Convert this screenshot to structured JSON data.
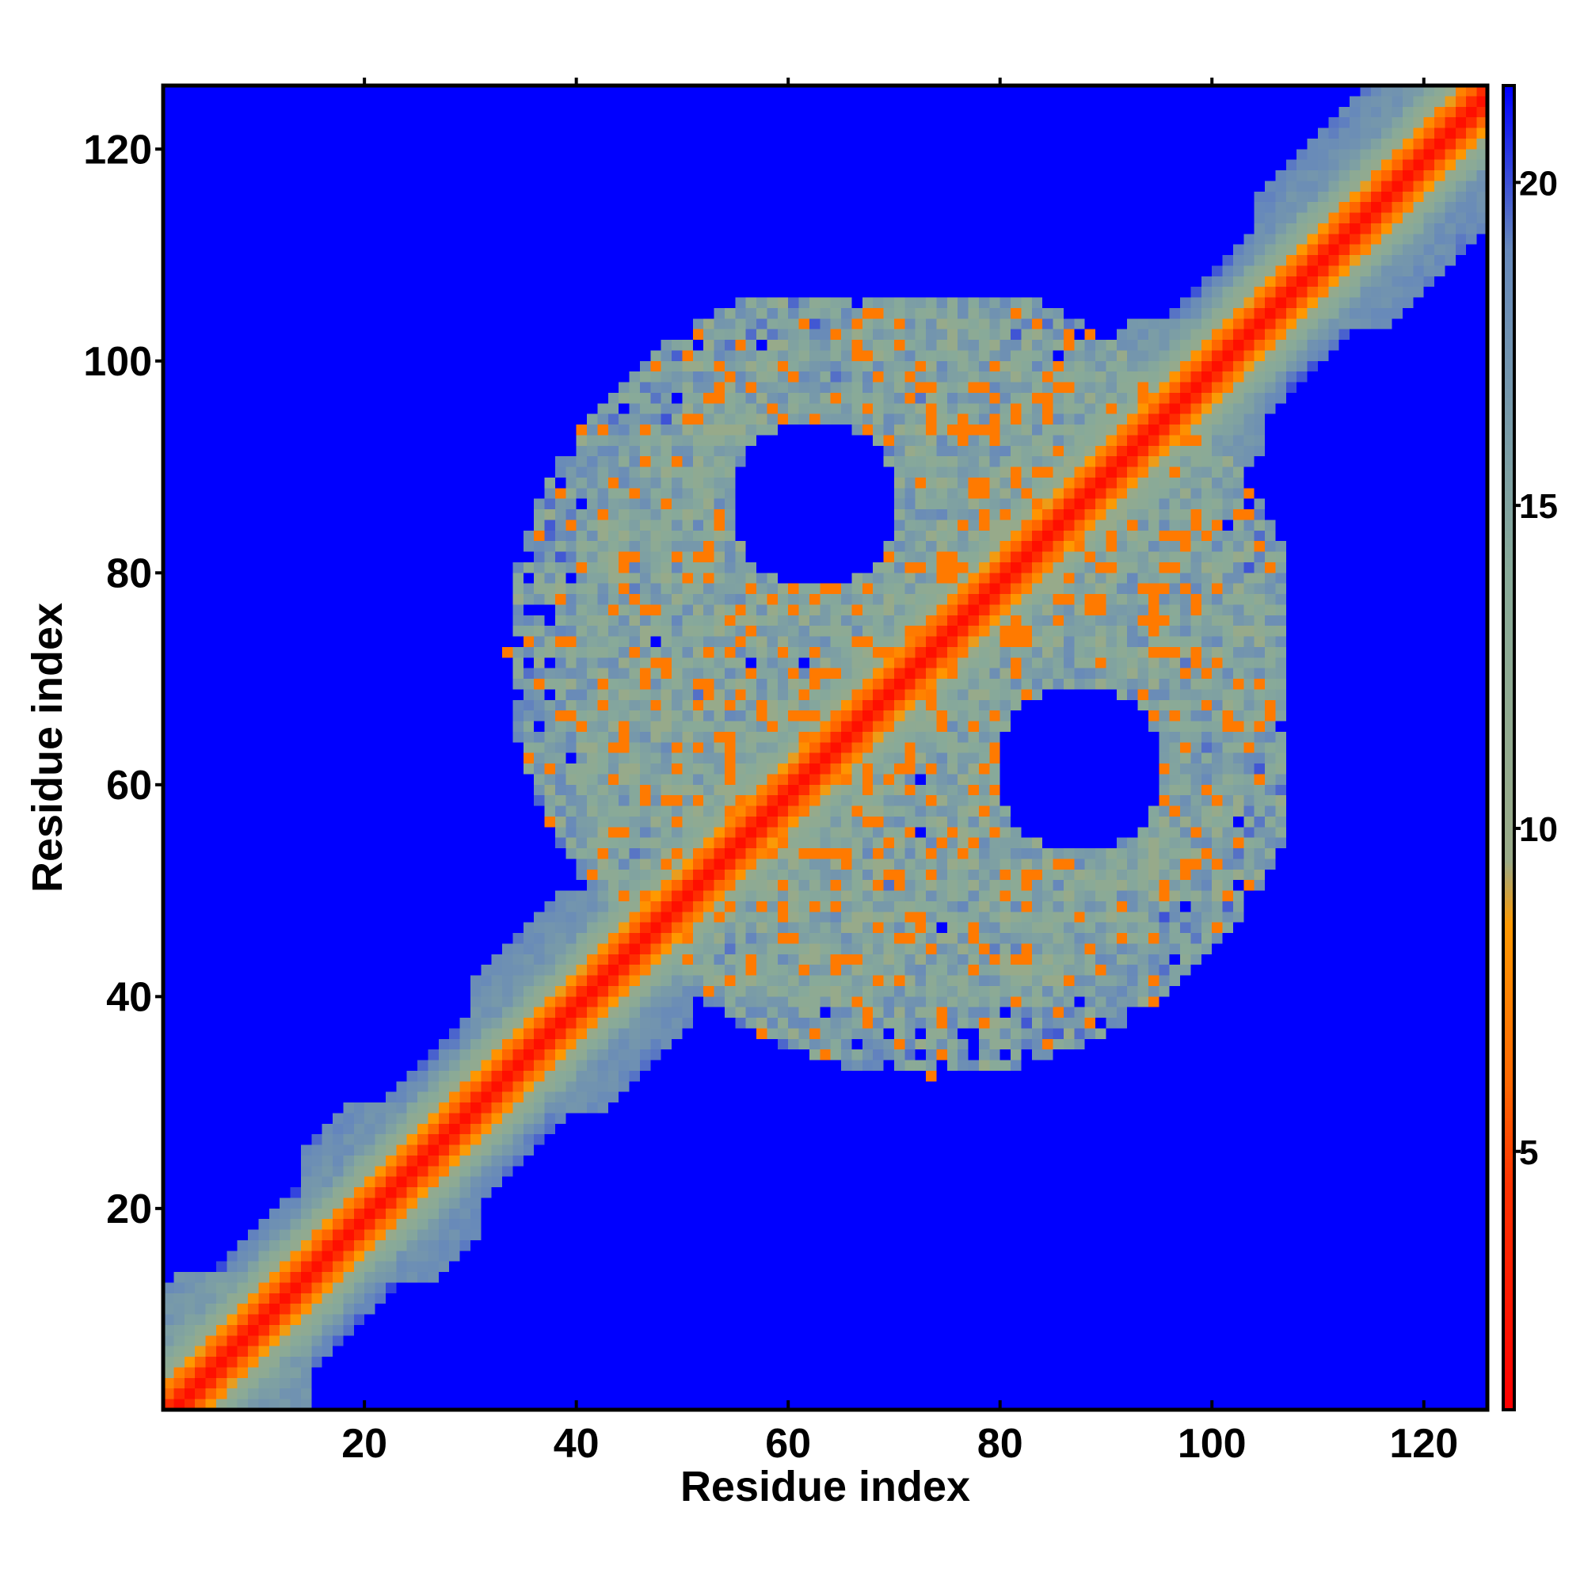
{
  "chart_data": {
    "type": "heatmap",
    "title": "",
    "xlabel": "Residue index",
    "ylabel": "Residue index",
    "xlim": [
      1,
      126
    ],
    "ylim": [
      1,
      126
    ],
    "x_ticks": [
      20,
      40,
      60,
      80,
      100,
      120
    ],
    "y_ticks": [
      20,
      40,
      60,
      80,
      100,
      120
    ],
    "colorbar": {
      "range": [
        1,
        21.5
      ],
      "ticks": [
        5,
        10,
        15,
        20
      ],
      "stops": [
        {
          "value": 1,
          "color": "#ff0000"
        },
        {
          "value": 4.5,
          "color": "#ff3300"
        },
        {
          "value": 6,
          "color": "#ff6600"
        },
        {
          "value": 8.5,
          "color": "#ff9900"
        },
        {
          "value": 9.5,
          "color": "#99aa88"
        },
        {
          "value": 14,
          "color": "#88aa99"
        },
        {
          "value": 19,
          "color": "#6688bb"
        },
        {
          "value": 21.5,
          "color": "#0000ff"
        }
      ]
    },
    "matrix": {
      "description_of_values": "symmetric residue-residue distance map",
      "n": 126,
      "background_value": 21.5,
      "diagonal": [
        {
          "offset": 0,
          "value": 2
        },
        {
          "offset": 1,
          "value": 4
        },
        {
          "offset": 2,
          "value": 6
        },
        {
          "offset": 3,
          "value": 8
        },
        {
          "offset": 4,
          "value": 11
        },
        {
          "offset": 5,
          "value": 13
        },
        {
          "offset": 6,
          "value": 15
        },
        {
          "offset": 7,
          "value": 17
        },
        {
          "offset": 8,
          "value": 18.5
        },
        {
          "offset": 9,
          "value": 19.5
        }
      ],
      "contact_regions": [
        {
          "i_range": [
            1,
            14
          ],
          "j_range": [
            1,
            14
          ],
          "value": 13
        },
        {
          "i_range": [
            14,
            30
          ],
          "j_range": [
            14,
            30
          ],
          "value": 14
        },
        {
          "i_range": [
            30,
            50
          ],
          "j_range": [
            30,
            50
          ],
          "value": 14
        },
        {
          "i_range": [
            50,
            68
          ],
          "j_range": [
            50,
            68
          ],
          "value": 13
        },
        {
          "i_range": [
            68,
            88
          ],
          "j_range": [
            68,
            88
          ],
          "value": 14
        },
        {
          "i_range": [
            88,
            104
          ],
          "j_range": [
            88,
            104
          ],
          "value": 13
        },
        {
          "i_range": [
            104,
            126
          ],
          "j_range": [
            104,
            126
          ],
          "value": 14
        },
        {
          "i_range": [
            40,
            106
          ],
          "j_range": [
            30,
            108
          ],
          "value": 14,
          "sparse": true
        }
      ]
    }
  }
}
